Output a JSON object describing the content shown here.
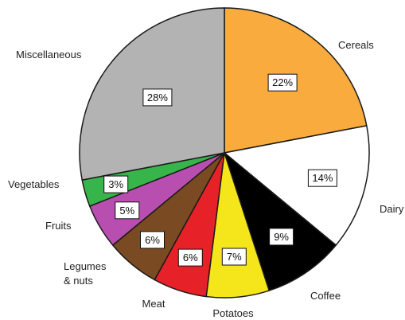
{
  "chart_data": {
    "type": "pie",
    "title": "",
    "start": "top, clockwise",
    "slices": [
      {
        "label": "Cereals",
        "value": 22,
        "display": "22%",
        "color": "#f9ab3d"
      },
      {
        "label": "Dairy",
        "value": 14,
        "display": "14%",
        "color": "#ffffff"
      },
      {
        "label": "Coffee",
        "value": 9,
        "display": "9%",
        "color": "#000000"
      },
      {
        "label": "Potatoes",
        "value": 7,
        "display": "7%",
        "color": "#f5e51b"
      },
      {
        "label": "Meat",
        "value": 6,
        "display": "6%",
        "color": "#e62228"
      },
      {
        "label": "Legumes & nuts",
        "value": 6,
        "display": "6%",
        "color": "#7a4a22"
      },
      {
        "label": "Fruits",
        "value": 5,
        "display": "5%",
        "color": "#b84fb0"
      },
      {
        "label": "Vegetables",
        "value": 3,
        "display": "3%",
        "color": "#38b54a"
      },
      {
        "label": "Miscellaneous",
        "value": 28,
        "display": "28%",
        "color": "#b3b3b3"
      }
    ]
  }
}
